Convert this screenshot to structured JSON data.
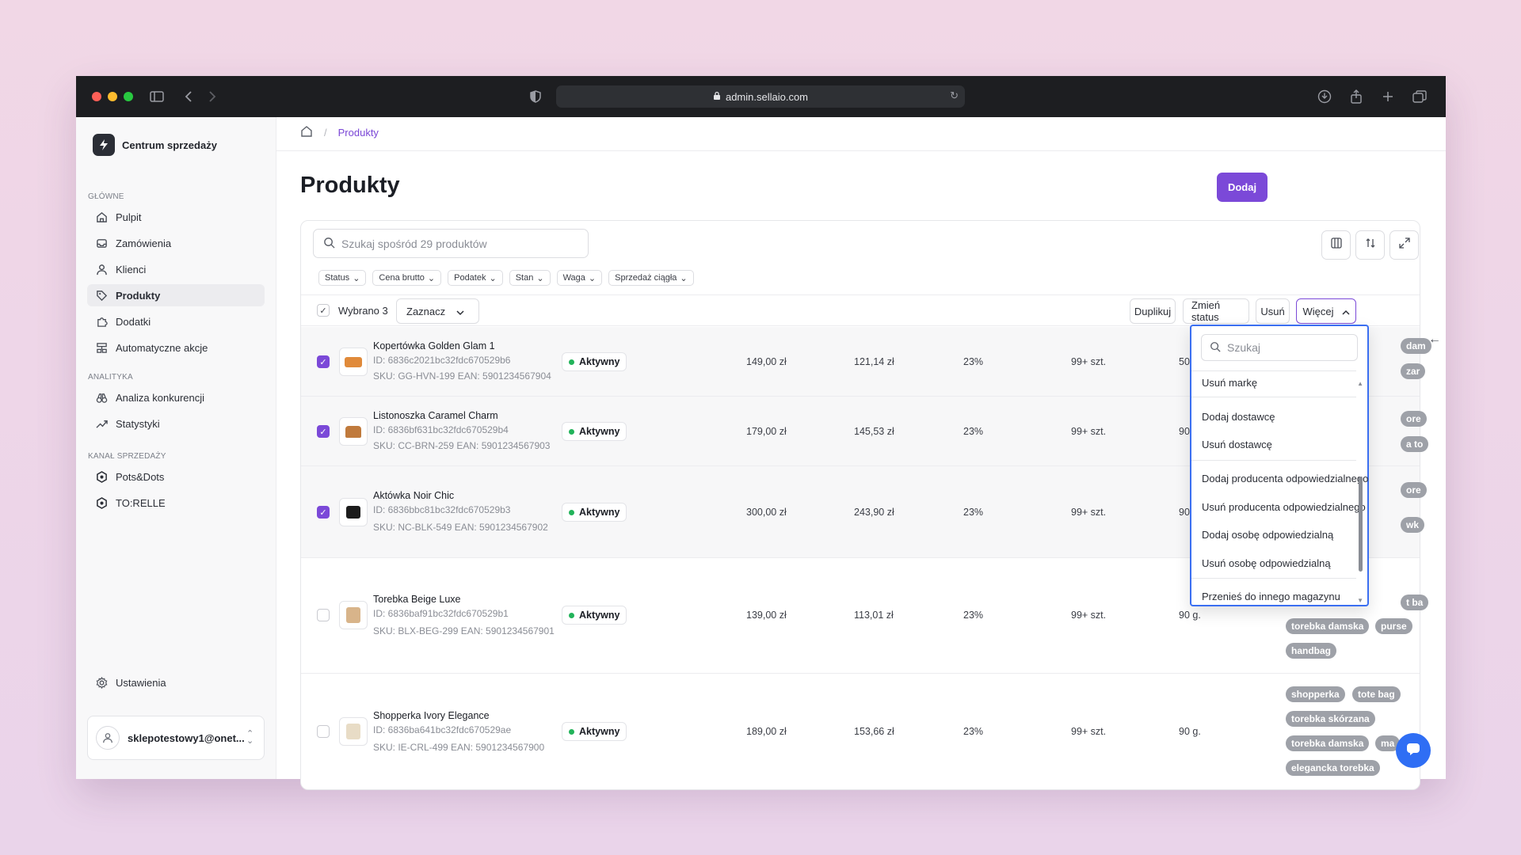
{
  "browser": {
    "url": "admin.sellaio.com"
  },
  "sidebar": {
    "brand": "Centrum sprzedaży",
    "sections": {
      "main": "GŁÓWNE",
      "analytics": "ANALITYKA",
      "channel": "KANAŁ SPRZEDAŻY"
    },
    "items": [
      {
        "label": "Pulpit",
        "icon": "home-icon"
      },
      {
        "label": "Zamówienia",
        "icon": "inbox-icon"
      },
      {
        "label": "Klienci",
        "icon": "user-icon"
      },
      {
        "label": "Produkty",
        "icon": "tag-icon",
        "active": true
      },
      {
        "label": "Dodatki",
        "icon": "puzzle-icon"
      },
      {
        "label": "Automatyczne akcje",
        "icon": "automation-icon"
      },
      {
        "label": "Analiza konkurencji",
        "icon": "binoculars-icon"
      },
      {
        "label": "Statystyki",
        "icon": "trend-icon"
      },
      {
        "label": "Pots&Dots",
        "icon": "hexagon-icon"
      },
      {
        "label": "TO:RELLE",
        "icon": "hexagon-icon"
      }
    ],
    "settings": "Ustawienia",
    "user": "sklepotestowy1@onet..."
  },
  "breadcrumb": {
    "current": "Produkty",
    "separator": "/"
  },
  "page": {
    "title": "Produkty",
    "add_label": "Dodaj"
  },
  "search": {
    "placeholder": "Szukaj spośród 29 produktów"
  },
  "filters": [
    "Status",
    "Cena brutto",
    "Podatek",
    "Stan",
    "Waga",
    "Sprzedaż ciągła"
  ],
  "bulk": {
    "selected_label": "Wybrano 3",
    "select_menu": "Zaznacz",
    "actions": {
      "duplicate": "Duplikuj",
      "change_status": "Zmień status",
      "delete": "Usuń",
      "more": "Więcej"
    }
  },
  "products": [
    {
      "name": "Kopertówka Golden Glam 1",
      "id": "ID: 6836c2021bc32fdc670529b6",
      "sku": "SKU: GG-HVN-199 EAN: 5901234567904",
      "status": "Aktywny",
      "price_gross": "149,00 zł",
      "price_net": "121,14 zł",
      "tax": "23%",
      "stock": "99+ szt.",
      "weight": "50",
      "selected": true,
      "thumb_color": "#e08a3a"
    },
    {
      "name": "Listonoszka Caramel Charm",
      "id": "ID: 6836bf631bc32fdc670529b4",
      "sku": "SKU: CC-BRN-259 EAN: 5901234567903",
      "status": "Aktywny",
      "price_gross": "179,00 zł",
      "price_net": "145,53 zł",
      "tax": "23%",
      "stock": "99+ szt.",
      "weight": "90",
      "selected": true,
      "thumb_color": "#c07a3c"
    },
    {
      "name": "Aktówka Noir Chic",
      "id": "ID: 6836bbc81bc32fdc670529b3",
      "sku": "SKU: NC-BLK-549 EAN: 5901234567902",
      "status": "Aktywny",
      "price_gross": "300,00 zł",
      "price_net": "243,90 zł",
      "tax": "23%",
      "stock": "99+ szt.",
      "weight": "90",
      "selected": true,
      "thumb_color": "#1c1c1c"
    },
    {
      "name": "Torebka Beige Luxe",
      "id": "ID: 6836baf91bc32fdc670529b1",
      "sku": "SKU: BLX-BEG-299 EAN: 5901234567901",
      "status": "Aktywny",
      "price_gross": "139,00 zł",
      "price_net": "113,01 zł",
      "tax": "23%",
      "stock": "99+ szt.",
      "weight": "90 g.",
      "selected": false,
      "thumb_color": "#d8b48a"
    },
    {
      "name": "Shopperka Ivory Elegance",
      "id": "ID: 6836ba641bc32fdc670529ae",
      "sku": "SKU: IE-CRL-499 EAN: 5901234567900",
      "status": "Aktywny",
      "price_gross": "189,00 zł",
      "price_net": "153,66 zł",
      "tax": "23%",
      "stock": "99+ szt.",
      "weight": "90 g.",
      "selected": false,
      "thumb_color": "#e8dcc6"
    }
  ],
  "tags": {
    "row4": [
      "torebka damska",
      "purse",
      "handbag"
    ],
    "row5": [
      "shopperka",
      "tote bag",
      "torebka skórzana",
      "torebka damska",
      "ma",
      "elegancka torebka"
    ],
    "partial_top": [
      "dam",
      "zar",
      "ore",
      "a to",
      "ore",
      "wk",
      "t ba"
    ]
  },
  "dropdown": {
    "placeholder": "Szukaj",
    "items": [
      "Usuń markę",
      "Dodaj dostawcę",
      "Usuń dostawcę",
      "Dodaj producenta odpowiedzialnego",
      "Usuń producenta odpowiedzialnego",
      "Dodaj osobę odpowiedzialną",
      "Usuń osobę odpowiedzialną",
      "Przenieś do innego magazynu"
    ]
  },
  "colors": {
    "accent": "#7b49d8",
    "focus": "#3b6ff1",
    "active_dot": "#22b35a",
    "chat": "#2f6ef4"
  }
}
